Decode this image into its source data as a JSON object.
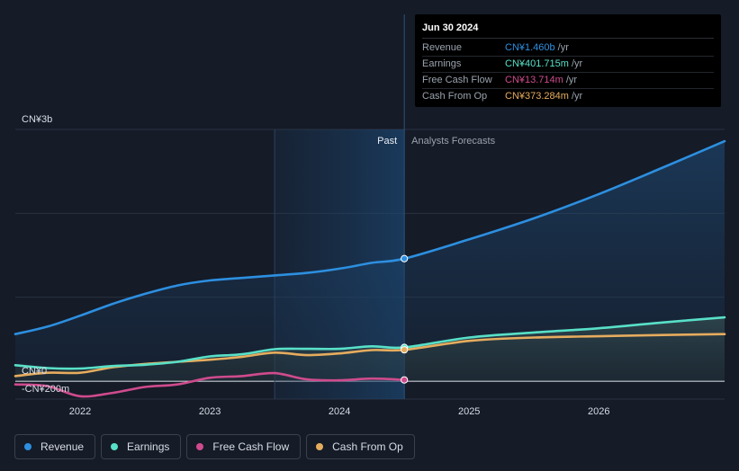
{
  "chart_data": {
    "type": "line",
    "currency_unit": "CN¥",
    "y_axis": {
      "ylim": [
        -200,
        3000
      ],
      "tick_labels": [
        {
          "value": 3000,
          "label": "CN¥3b"
        },
        {
          "value": 0,
          "label": "CN¥0"
        },
        {
          "value": -200,
          "label": "-CN¥200m"
        }
      ]
    },
    "x_axis": {
      "xlim": [
        2021.5,
        2026.97
      ],
      "ticks": [
        {
          "value": 2022.0,
          "label": "2022"
        },
        {
          "value": 2023.0,
          "label": "2023"
        },
        {
          "value": 2024.0,
          "label": "2024"
        },
        {
          "value": 2025.0,
          "label": "2025"
        },
        {
          "value": 2026.0,
          "label": "2026"
        }
      ]
    },
    "past_label": "Past",
    "forecast_label": "Analysts Forecasts",
    "past_shade_start": 2023.5,
    "divider_date": 2024.5,
    "series": [
      {
        "name": "Revenue",
        "color": "#2d8fe0",
        "points": [
          [
            2021.5,
            560
          ],
          [
            2021.75,
            650
          ],
          [
            2022.0,
            780
          ],
          [
            2022.25,
            920
          ],
          [
            2022.5,
            1040
          ],
          [
            2022.75,
            1140
          ],
          [
            2023.0,
            1200
          ],
          [
            2023.25,
            1230
          ],
          [
            2023.5,
            1260
          ],
          [
            2023.75,
            1290
          ],
          [
            2024.0,
            1340
          ],
          [
            2024.25,
            1410
          ],
          [
            2024.5,
            1460
          ]
        ],
        "forecast": [
          [
            2024.5,
            1460
          ],
          [
            2025.0,
            1690
          ],
          [
            2025.5,
            1940
          ],
          [
            2026.0,
            2230
          ],
          [
            2026.5,
            2550
          ],
          [
            2026.97,
            2860
          ]
        ]
      },
      {
        "name": "Earnings",
        "color": "#58e0c8",
        "points": [
          [
            2021.5,
            190
          ],
          [
            2021.75,
            155
          ],
          [
            2022.0,
            150
          ],
          [
            2022.25,
            180
          ],
          [
            2022.5,
            195
          ],
          [
            2022.75,
            230
          ],
          [
            2023.0,
            295
          ],
          [
            2023.25,
            320
          ],
          [
            2023.5,
            380
          ],
          [
            2023.75,
            385
          ],
          [
            2024.0,
            385
          ],
          [
            2024.25,
            415
          ],
          [
            2024.5,
            402
          ]
        ],
        "forecast": [
          [
            2024.5,
            402
          ],
          [
            2025.0,
            520
          ],
          [
            2025.5,
            580
          ],
          [
            2026.0,
            630
          ],
          [
            2026.5,
            700
          ],
          [
            2026.97,
            760
          ]
        ]
      },
      {
        "name": "Free Cash Flow",
        "color": "#cf4b8d",
        "points": [
          [
            2021.5,
            -40
          ],
          [
            2021.75,
            -60
          ],
          [
            2022.0,
            -180
          ],
          [
            2022.25,
            -140
          ],
          [
            2022.5,
            -70
          ],
          [
            2022.75,
            -40
          ],
          [
            2023.0,
            40
          ],
          [
            2023.25,
            60
          ],
          [
            2023.5,
            95
          ],
          [
            2023.75,
            20
          ],
          [
            2024.0,
            10
          ],
          [
            2024.25,
            30
          ],
          [
            2024.5,
            14
          ]
        ]
      },
      {
        "name": "Cash From Op",
        "color": "#e6ac5e",
        "points": [
          [
            2021.5,
            60
          ],
          [
            2021.75,
            100
          ],
          [
            2022.0,
            100
          ],
          [
            2022.25,
            165
          ],
          [
            2022.5,
            205
          ],
          [
            2022.75,
            230
          ],
          [
            2023.0,
            255
          ],
          [
            2023.25,
            290
          ],
          [
            2023.5,
            340
          ],
          [
            2023.75,
            310
          ],
          [
            2024.0,
            330
          ],
          [
            2024.25,
            370
          ],
          [
            2024.5,
            373
          ]
        ],
        "forecast": [
          [
            2024.5,
            373
          ],
          [
            2025.0,
            480
          ],
          [
            2025.5,
            520
          ],
          [
            2026.0,
            535
          ],
          [
            2026.5,
            550
          ],
          [
            2026.97,
            560
          ]
        ]
      }
    ]
  },
  "tooltip": {
    "date": "Jun 30 2024",
    "rows": [
      {
        "label": "Revenue",
        "value": "CN¥1.460b",
        "unit": "/yr",
        "color": "#2d8fe0"
      },
      {
        "label": "Earnings",
        "value": "CN¥401.715m",
        "unit": "/yr",
        "color": "#58e0c8"
      },
      {
        "label": "Free Cash Flow",
        "value": "CN¥13.714m",
        "unit": "/yr",
        "color": "#cf4b8d"
      },
      {
        "label": "Cash From Op",
        "value": "CN¥373.284m",
        "unit": "/yr",
        "color": "#e6ac5e"
      }
    ]
  },
  "legend": [
    {
      "label": "Revenue",
      "color": "#2d8fe0"
    },
    {
      "label": "Earnings",
      "color": "#58e0c8"
    },
    {
      "label": "Free Cash Flow",
      "color": "#cf4b8d"
    },
    {
      "label": "Cash From Op",
      "color": "#e6ac5e"
    }
  ]
}
